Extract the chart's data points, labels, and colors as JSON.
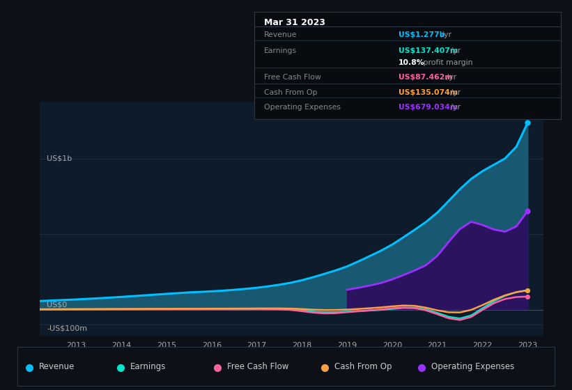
{
  "bg_color": "#0d1117",
  "plot_bg_color": "#0d1b2a",
  "years": [
    2012.0,
    2012.25,
    2012.5,
    2012.75,
    2013.0,
    2013.25,
    2013.5,
    2013.75,
    2014.0,
    2014.25,
    2014.5,
    2014.75,
    2015.0,
    2015.25,
    2015.5,
    2015.75,
    2016.0,
    2016.25,
    2016.5,
    2016.75,
    2017.0,
    2017.25,
    2017.5,
    2017.75,
    2018.0,
    2018.25,
    2018.5,
    2018.75,
    2019.0,
    2019.25,
    2019.5,
    2019.75,
    2020.0,
    2020.25,
    2020.5,
    2020.75,
    2021.0,
    2021.25,
    2021.5,
    2021.75,
    2022.0,
    2022.25,
    2022.5,
    2022.75,
    2023.0
  ],
  "revenue": [
    55,
    58,
    62,
    65,
    68,
    72,
    76,
    80,
    85,
    90,
    95,
    100,
    105,
    110,
    115,
    118,
    122,
    126,
    132,
    138,
    145,
    155,
    165,
    178,
    195,
    215,
    238,
    260,
    285,
    320,
    355,
    390,
    430,
    480,
    530,
    580,
    640,
    720,
    800,
    870,
    920,
    960,
    1000,
    1050,
    1277
  ],
  "operating_expenses": [
    null,
    null,
    null,
    null,
    null,
    null,
    null,
    null,
    null,
    null,
    null,
    null,
    null,
    null,
    null,
    null,
    null,
    null,
    null,
    null,
    null,
    null,
    null,
    null,
    null,
    null,
    null,
    null,
    130,
    145,
    160,
    175,
    200,
    230,
    260,
    290,
    350,
    450,
    540,
    600,
    560,
    530,
    510,
    530,
    679
  ],
  "earnings": [
    2,
    1,
    3,
    2,
    3,
    2,
    4,
    3,
    4,
    3,
    5,
    4,
    5,
    4,
    6,
    5,
    6,
    5,
    7,
    6,
    8,
    7,
    9,
    8,
    -5,
    -15,
    -20,
    -18,
    -12,
    -8,
    -5,
    -3,
    5,
    15,
    20,
    10,
    -20,
    -50,
    -80,
    -60,
    20,
    60,
    100,
    120,
    137
  ],
  "free_cash_flow": [
    1,
    2,
    1,
    3,
    2,
    3,
    2,
    4,
    3,
    4,
    3,
    5,
    4,
    5,
    4,
    6,
    5,
    6,
    5,
    7,
    6,
    5,
    4,
    3,
    -10,
    -20,
    -30,
    -25,
    -15,
    -10,
    -5,
    0,
    10,
    20,
    15,
    5,
    -30,
    -60,
    -90,
    -70,
    10,
    50,
    80,
    90,
    87
  ],
  "cash_from_op": [
    3,
    4,
    3,
    5,
    4,
    5,
    4,
    6,
    5,
    6,
    5,
    7,
    6,
    7,
    6,
    8,
    7,
    8,
    7,
    9,
    8,
    9,
    8,
    10,
    5,
    0,
    -5,
    -2,
    0,
    5,
    10,
    15,
    20,
    35,
    30,
    20,
    -10,
    -20,
    -30,
    -10,
    30,
    70,
    100,
    120,
    135
  ],
  "revenue_color": "#00bfff",
  "revenue_fill": "#1a5f7a",
  "earnings_color": "#00e5cc",
  "fcf_color": "#ff5fa0",
  "cashop_color": "#ffa040",
  "opex_color": "#9b30ff",
  "opex_fill": "#2d1060",
  "ylim_min": -170,
  "ylim_max": 1380,
  "x_ticks": [
    2013,
    2014,
    2015,
    2016,
    2017,
    2018,
    2019,
    2020,
    2021,
    2022,
    2023
  ],
  "info_box": {
    "title": "Mar 31 2023",
    "rows": [
      {
        "label": "Revenue",
        "value": "US$1.277b",
        "suffix": " /yr",
        "color": "#00bfff"
      },
      {
        "label": "Earnings",
        "value": "US$137.407m",
        "suffix": " /yr",
        "color": "#00e5cc"
      },
      {
        "label": "",
        "value": "10.8%",
        "suffix": " profit margin",
        "color": "#ffffff"
      },
      {
        "label": "Free Cash Flow",
        "value": "US$87.462m",
        "suffix": " /yr",
        "color": "#ff5fa0"
      },
      {
        "label": "Cash From Op",
        "value": "US$135.074m",
        "suffix": " /yr",
        "color": "#ffa040"
      },
      {
        "label": "Operating Expenses",
        "value": "US$679.034m",
        "suffix": " /yr",
        "color": "#9b30ff"
      }
    ]
  },
  "legend_items": [
    {
      "label": "Revenue",
      "color": "#00bfff"
    },
    {
      "label": "Earnings",
      "color": "#00e5cc"
    },
    {
      "label": "Free Cash Flow",
      "color": "#ff5fa0"
    },
    {
      "label": "Cash From Op",
      "color": "#ffa040"
    },
    {
      "label": "Operating Expenses",
      "color": "#9b30ff"
    }
  ]
}
